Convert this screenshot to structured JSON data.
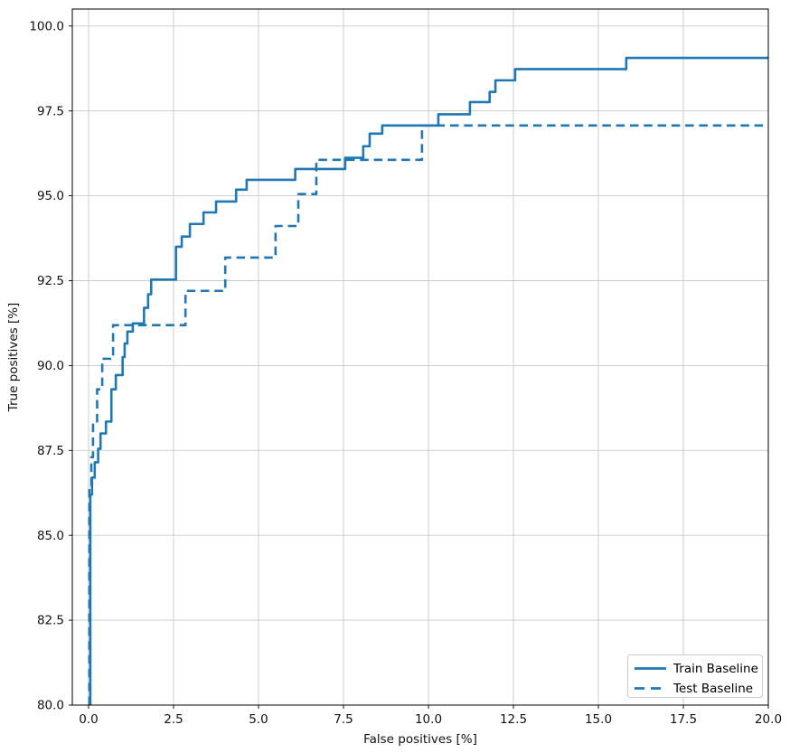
{
  "chart_data": {
    "type": "line",
    "subtype": "step-post",
    "title": "",
    "xlabel": "False positives [%]",
    "ylabel": "True positives [%]",
    "xlim": [
      -0.48,
      20
    ],
    "ylim": [
      80,
      100.5
    ],
    "grid": true,
    "legend_position": "lower right",
    "xtick_values": [
      0,
      2.5,
      5,
      7.5,
      10,
      12.5,
      15,
      17.5,
      20
    ],
    "xtick_labels": [
      "0.0",
      "2.5",
      "5.0",
      "7.5",
      "10.0",
      "12.5",
      "15.0",
      "17.5",
      "20.0"
    ],
    "ytick_values": [
      80,
      82.5,
      85,
      87.5,
      90,
      92.5,
      95,
      97.5,
      100
    ],
    "ytick_labels": [
      "80.0",
      "82.5",
      "85.0",
      "87.5",
      "90.0",
      "92.5",
      "95.0",
      "97.5",
      "100.0"
    ],
    "series": [
      {
        "name": "Train Baseline",
        "style": "solid",
        "color": "#1f77b4",
        "points": [
          [
            0.05,
            80.0
          ],
          [
            0.05,
            86.2
          ],
          [
            0.1,
            86.2
          ],
          [
            0.1,
            86.7
          ],
          [
            0.18,
            86.7
          ],
          [
            0.18,
            87.15
          ],
          [
            0.28,
            87.15
          ],
          [
            0.28,
            87.55
          ],
          [
            0.35,
            87.55
          ],
          [
            0.35,
            88.0
          ],
          [
            0.51,
            88.0
          ],
          [
            0.51,
            88.35
          ],
          [
            0.67,
            88.35
          ],
          [
            0.67,
            89.3
          ],
          [
            0.8,
            89.3
          ],
          [
            0.8,
            89.72
          ],
          [
            1.0,
            89.72
          ],
          [
            1.0,
            90.25
          ],
          [
            1.06,
            90.25
          ],
          [
            1.06,
            90.65
          ],
          [
            1.14,
            90.65
          ],
          [
            1.14,
            91.0
          ],
          [
            1.3,
            91.0
          ],
          [
            1.3,
            91.24
          ],
          [
            1.63,
            91.24
          ],
          [
            1.63,
            91.7
          ],
          [
            1.75,
            91.7
          ],
          [
            1.75,
            92.1
          ],
          [
            1.84,
            92.1
          ],
          [
            1.84,
            92.53
          ],
          [
            2.57,
            92.53
          ],
          [
            2.57,
            93.5
          ],
          [
            2.74,
            93.5
          ],
          [
            2.74,
            93.8
          ],
          [
            2.98,
            93.8
          ],
          [
            2.98,
            94.17
          ],
          [
            3.38,
            94.17
          ],
          [
            3.38,
            94.51
          ],
          [
            3.75,
            94.51
          ],
          [
            3.75,
            94.83
          ],
          [
            4.34,
            94.83
          ],
          [
            4.34,
            95.18
          ],
          [
            4.65,
            95.18
          ],
          [
            4.65,
            95.47
          ],
          [
            6.08,
            95.47
          ],
          [
            6.08,
            95.79
          ],
          [
            7.55,
            95.79
          ],
          [
            7.55,
            96.12
          ],
          [
            8.08,
            96.12
          ],
          [
            8.08,
            96.46
          ],
          [
            8.27,
            96.46
          ],
          [
            8.27,
            96.83
          ],
          [
            8.64,
            96.83
          ],
          [
            8.64,
            97.07
          ],
          [
            10.29,
            97.07
          ],
          [
            10.29,
            97.4
          ],
          [
            11.22,
            97.4
          ],
          [
            11.22,
            97.76
          ],
          [
            11.8,
            97.76
          ],
          [
            11.8,
            98.06
          ],
          [
            11.97,
            98.06
          ],
          [
            11.97,
            98.4
          ],
          [
            12.55,
            98.4
          ],
          [
            12.55,
            98.73
          ],
          [
            15.82,
            98.73
          ],
          [
            15.82,
            99.06
          ],
          [
            20.0,
            99.06
          ]
        ]
      },
      {
        "name": "Test Baseline",
        "style": "dashed",
        "color": "#1f77b4",
        "points": [
          [
            0.02,
            80.0
          ],
          [
            0.02,
            86.4
          ],
          [
            0.08,
            86.4
          ],
          [
            0.08,
            87.3
          ],
          [
            0.13,
            87.3
          ],
          [
            0.13,
            88.3
          ],
          [
            0.25,
            88.3
          ],
          [
            0.25,
            89.3
          ],
          [
            0.4,
            89.3
          ],
          [
            0.4,
            90.2
          ],
          [
            0.72,
            90.2
          ],
          [
            0.72,
            91.19
          ],
          [
            2.85,
            91.19
          ],
          [
            2.85,
            92.2
          ],
          [
            4.02,
            92.2
          ],
          [
            4.02,
            93.18
          ],
          [
            5.5,
            93.18
          ],
          [
            5.5,
            94.11
          ],
          [
            6.17,
            94.11
          ],
          [
            6.17,
            95.05
          ],
          [
            6.7,
            95.05
          ],
          [
            6.7,
            96.06
          ],
          [
            9.81,
            96.06
          ],
          [
            9.81,
            97.07
          ],
          [
            20.0,
            97.07
          ]
        ]
      }
    ]
  },
  "colors": {
    "accent": "#1f77b4",
    "grid": "#c9c9c9",
    "spine": "#000000",
    "background": "#ffffff"
  }
}
